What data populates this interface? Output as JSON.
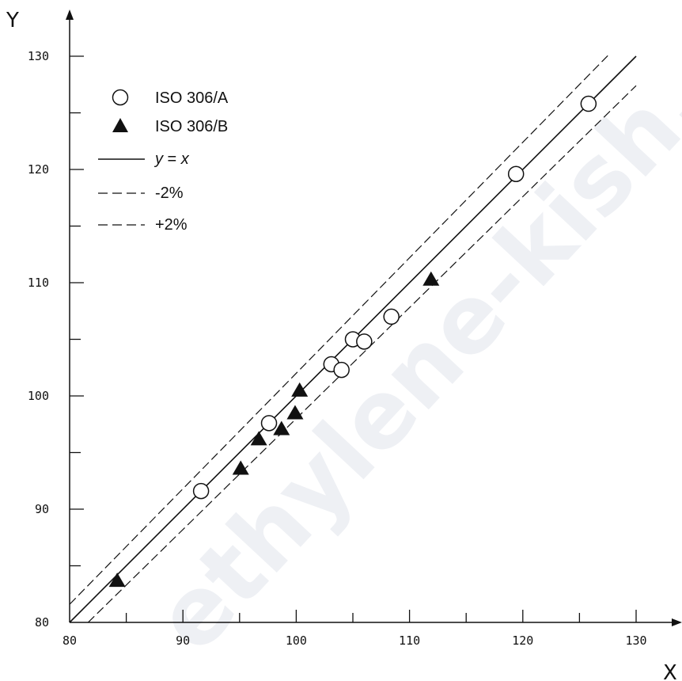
{
  "chart_data": {
    "type": "scatter",
    "xlabel": "X",
    "ylabel": "Y",
    "xlim": [
      80,
      130
    ],
    "ylim": [
      80,
      130
    ],
    "x_ticks": [
      80,
      90,
      100,
      110,
      120,
      130
    ],
    "y_ticks": [
      80,
      90,
      100,
      110,
      120,
      130
    ],
    "minor_tick_step": 5,
    "grid": false,
    "legend_position": "top-left",
    "series": [
      {
        "name": "ISO 306/A",
        "marker": "open-circle",
        "points": [
          {
            "x": 91.6,
            "y": 91.6
          },
          {
            "x": 97.6,
            "y": 97.6
          },
          {
            "x": 103.1,
            "y": 102.8
          },
          {
            "x": 104.0,
            "y": 102.3
          },
          {
            "x": 105.0,
            "y": 105.0
          },
          {
            "x": 106.0,
            "y": 104.8
          },
          {
            "x": 108.4,
            "y": 107.0
          },
          {
            "x": 119.4,
            "y": 119.6
          },
          {
            "x": 125.8,
            "y": 125.8
          }
        ]
      },
      {
        "name": "ISO 306/B",
        "marker": "filled-triangle",
        "points": [
          {
            "x": 84.2,
            "y": 83.7
          },
          {
            "x": 95.1,
            "y": 93.6
          },
          {
            "x": 96.7,
            "y": 96.2
          },
          {
            "x": 98.7,
            "y": 97.1
          },
          {
            "x": 99.9,
            "y": 98.5
          },
          {
            "x": 100.3,
            "y": 100.5
          },
          {
            "x": 111.9,
            "y": 110.3
          }
        ]
      }
    ],
    "lines": [
      {
        "name_prefix": "y",
        "name_op": " = ",
        "name_suffix": "x",
        "style": "solid",
        "factor": 1.0
      },
      {
        "name": "-2%",
        "style": "dashed",
        "factor": 0.98
      },
      {
        "name": "+2%",
        "style": "dashed",
        "factor": 1.02
      }
    ],
    "watermark": "ethylene-kish.com"
  }
}
